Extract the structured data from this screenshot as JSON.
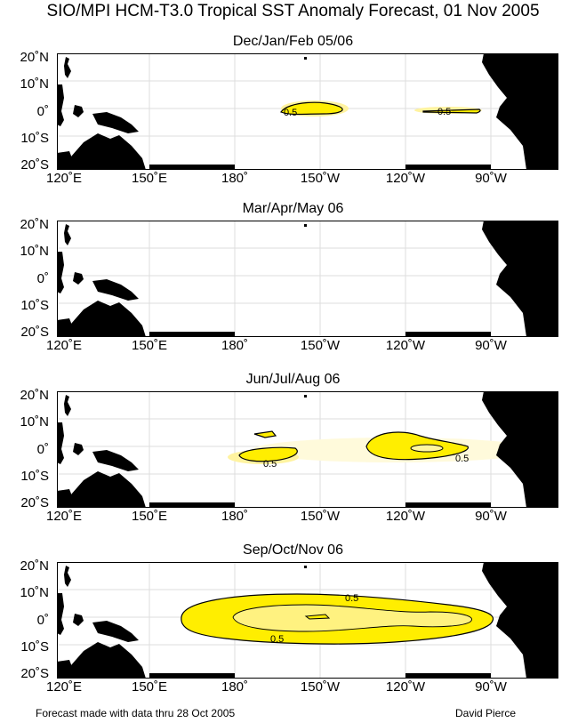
{
  "title": "SIO/MPI HCM-T3.0 Tropical SST Anomaly Forecast, 01 Nov 2005",
  "lat_labels": [
    "20˚N",
    "10˚N",
    "0˚",
    "10˚S",
    "20˚S"
  ],
  "lon_labels": [
    "120˚E",
    "150˚E",
    "180˚",
    "150˚W",
    "120˚W",
    "90˚W"
  ],
  "colors": {
    "land": "#000000",
    "anomaly_fill": "#ffee00",
    "anomaly_core": "#fff6a0",
    "grid": "#dddddd"
  },
  "panels": [
    {
      "season": "Dec/Jan/Feb 05/06",
      "contour_labels": [
        "0.5",
        "0.5"
      ]
    },
    {
      "season": "Mar/Apr/May 06",
      "contour_labels": []
    },
    {
      "season": "Jun/Jul/Aug 06",
      "contour_labels": [
        "0.5",
        "0.5"
      ]
    },
    {
      "season": "Sep/Oct/Nov 06",
      "contour_labels": [
        "0.5",
        "0.5"
      ]
    }
  ],
  "footer": {
    "left": "Forecast made with data thru 28 Oct 2005",
    "right": "David Pierce"
  }
}
